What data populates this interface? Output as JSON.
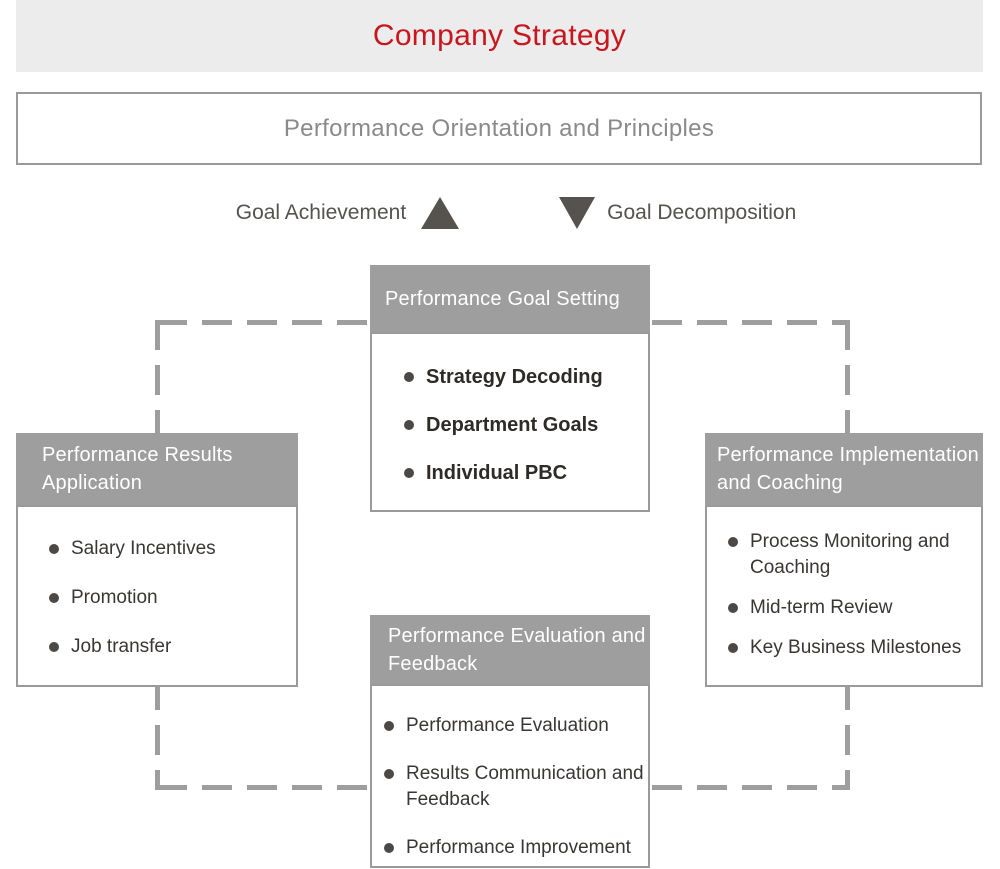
{
  "banner": {
    "title": "Company Strategy"
  },
  "principles": {
    "label": "Performance Orientation and Principles"
  },
  "flow": {
    "up_label": "Goal Achievement",
    "down_label": "Goal Decomposition"
  },
  "boxes": {
    "goal_setting": {
      "title": "Performance Goal Setting",
      "items": [
        "Strategy Decoding",
        "Department Goals",
        "Individual PBC"
      ]
    },
    "results_application": {
      "title": "Performance Results Application",
      "items": [
        "Salary Incentives",
        "Promotion",
        "Job transfer"
      ]
    },
    "implementation": {
      "title": "Performance Implementation and Coaching",
      "items": [
        "Process Monitoring and Coaching",
        "Mid-term Review",
        "Key Business Milestones"
      ]
    },
    "evaluation": {
      "title": "Performance Evaluation and Feedback",
      "items": [
        "Performance Evaluation",
        "Results Communication and Feedback",
        "Performance Improvement"
      ]
    }
  },
  "colors": {
    "banner_bg": "#ececec",
    "banner_text": "#c8161e",
    "header_bg": "#9e9e9e",
    "header_text": "#ffffff",
    "border_gray": "#9a9a9a",
    "principles_text": "#8a8a8a",
    "flow_text": "#56524e",
    "bullet_text": "#3a3634",
    "bullet_dot": "#4c4846",
    "dash_gray": "#9e9e9e"
  }
}
